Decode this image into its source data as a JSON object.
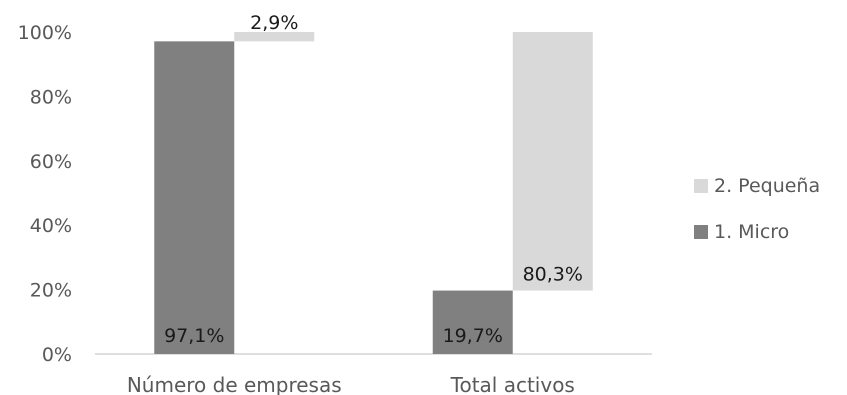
{
  "chart_data": {
    "type": "bar",
    "stacked": "offset-waterfall",
    "categories": [
      "Número de empresas",
      "Total activos"
    ],
    "series": [
      {
        "name": "1. Micro",
        "values": [
          97.1,
          19.7
        ],
        "labels": [
          "97,1%",
          "19,7%"
        ],
        "color": "#808080"
      },
      {
        "name": "2. Pequeña",
        "values": [
          2.9,
          80.3
        ],
        "labels": [
          "2,9%",
          "80,3%"
        ],
        "color": "#d9d9d9"
      }
    ],
    "ylim": [
      0,
      100
    ],
    "yticks": [
      "0%",
      "20%",
      "40%",
      "60%",
      "80%",
      "100%"
    ],
    "grid": false,
    "legend_position": "right"
  }
}
